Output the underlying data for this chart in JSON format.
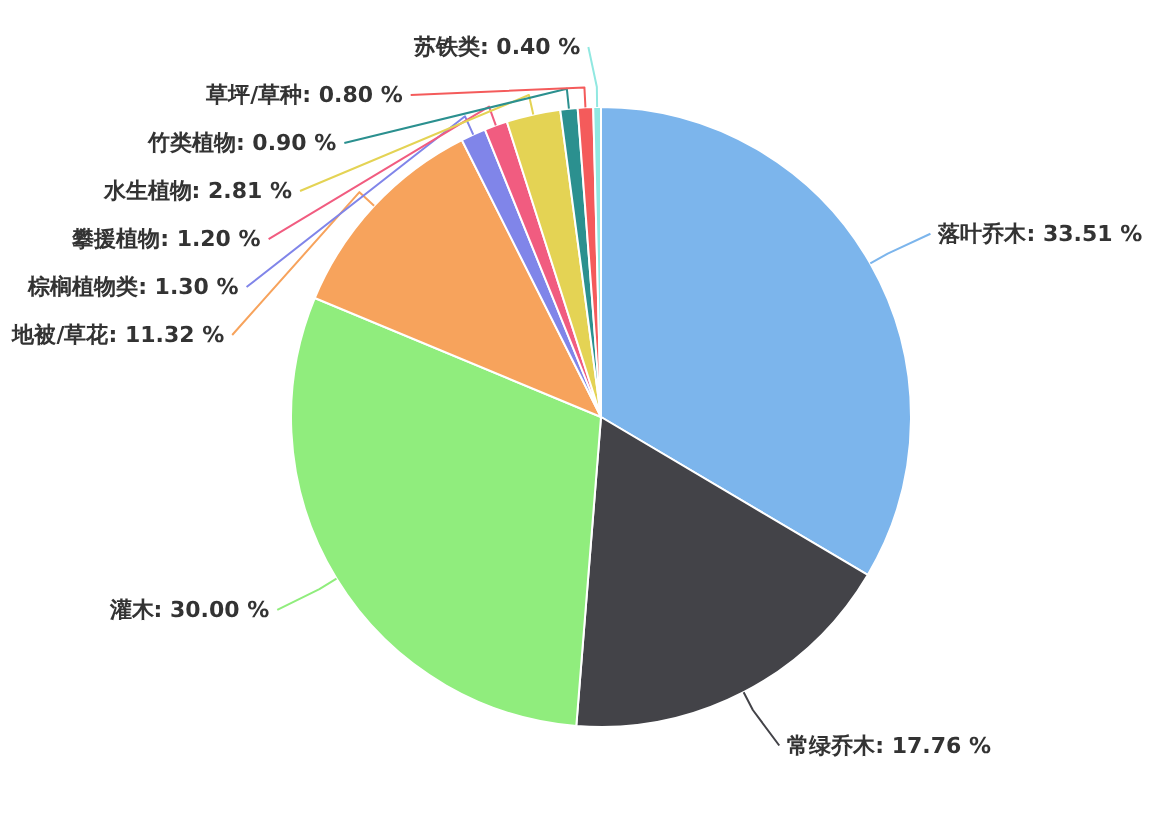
{
  "chart_data": {
    "type": "pie",
    "categories": [
      "落叶乔木",
      "常绿乔木",
      "灌木",
      "地被/草花",
      "棕榈植物类",
      "攀援植物",
      "水生植物",
      "竹类植物",
      "草坪/草种",
      "苏铁类"
    ],
    "values": [
      33.51,
      17.76,
      30.0,
      11.32,
      1.3,
      1.2,
      2.81,
      0.9,
      0.8,
      0.4
    ],
    "colors": [
      "#7cb5ec",
      "#434348",
      "#90ed7d",
      "#f7a35c",
      "#8085e9",
      "#f15c80",
      "#e4d354",
      "#2b908f",
      "#f45b5b",
      "#91e8e1"
    ],
    "value_labels": [
      "33.51 %",
      "17.76 %",
      "30.00 %",
      "11.32 %",
      "1.30 %",
      "1.20 %",
      "2.81 %",
      "0.90 %",
      "0.80 %",
      "0.40 %"
    ]
  }
}
